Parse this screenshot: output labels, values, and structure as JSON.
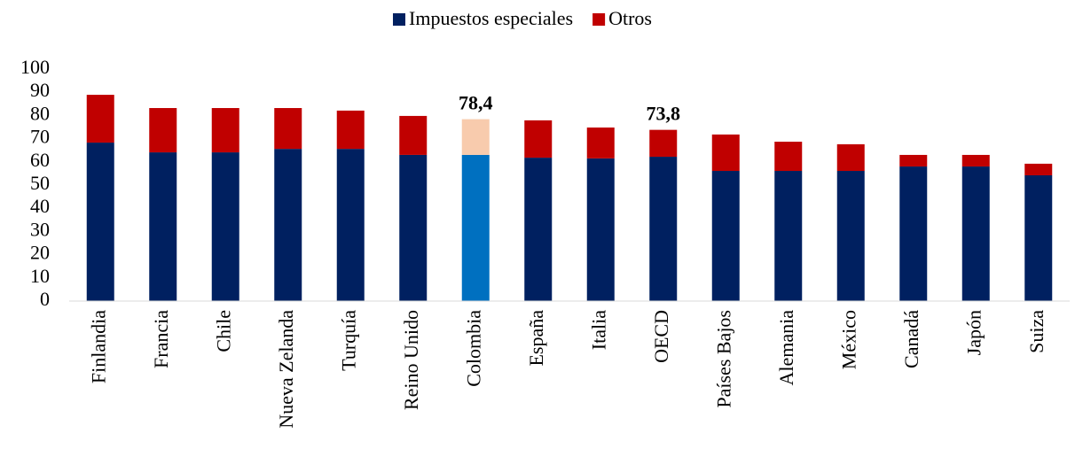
{
  "chart_data": {
    "type": "stacked_bar",
    "categories": [
      "Finlandia",
      "Francia",
      "Chile",
      "Nueva Zelanda",
      "Turquía",
      "Reino Unido",
      "Colombia",
      "España",
      "Italia",
      "OECD",
      "Países Bajos",
      "Alemania",
      "México",
      "Canadá",
      "Japón",
      "Suiza"
    ],
    "series": [
      {
        "name": "Impuestos especiales",
        "color": "#002060",
        "highlight_color": "#0070c0",
        "values": [
          68.3,
          64.1,
          64.1,
          65.6,
          65.6,
          63.0,
          63.0,
          61.8,
          61.5,
          62.2,
          56.1,
          56.1,
          56.1,
          58.0,
          58.0,
          54.2
        ]
      },
      {
        "name": "Otros",
        "color": "#c00000",
        "highlight_color": "#f8cbad",
        "values": [
          20.6,
          19.1,
          19.1,
          17.6,
          16.5,
          16.8,
          15.4,
          16.1,
          13.3,
          11.6,
          15.7,
          12.6,
          11.5,
          5.0,
          5.0,
          5.0
        ]
      }
    ],
    "highlight": "Colombia",
    "annotations": [
      {
        "category": "Colombia",
        "value": 78.4,
        "label": "78,4"
      },
      {
        "category": "OECD",
        "value": 73.8,
        "label": "73,8"
      }
    ],
    "ylim": [
      0,
      100
    ],
    "yticks": [
      0,
      10,
      20,
      30,
      40,
      50,
      60,
      70,
      80,
      90,
      100
    ],
    "grid": false
  }
}
